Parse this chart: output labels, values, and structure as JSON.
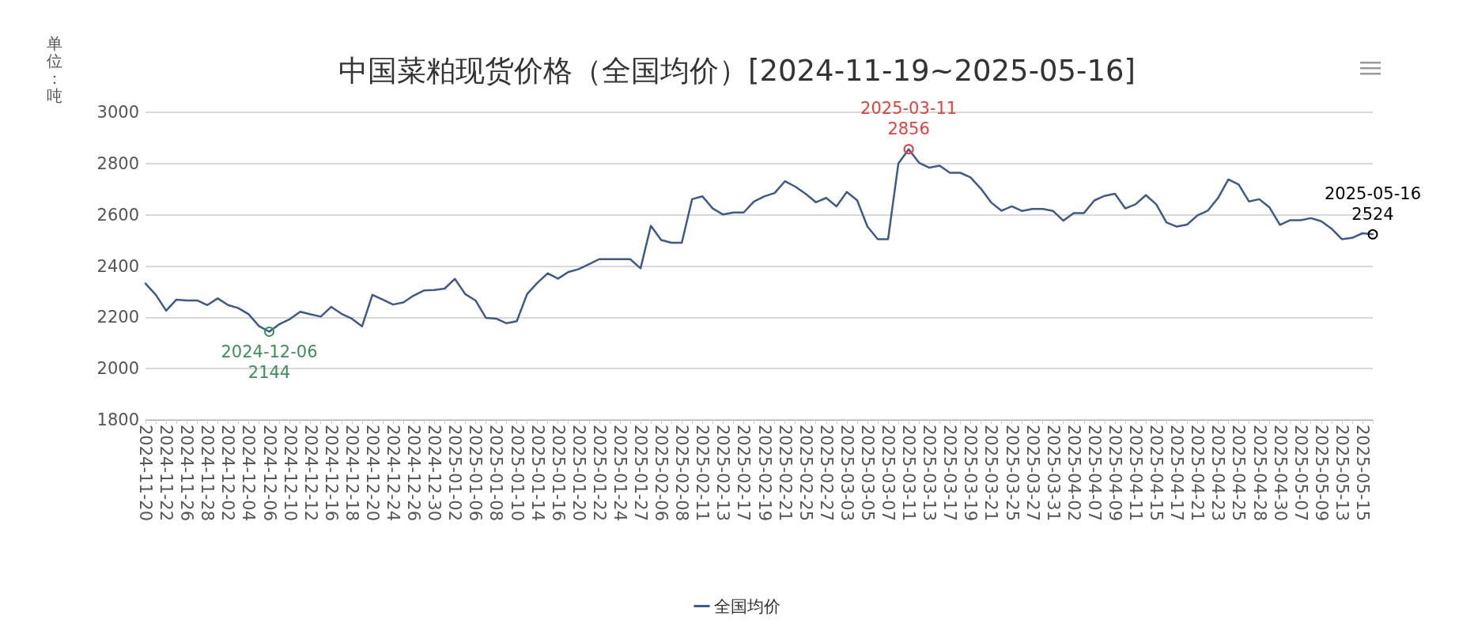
{
  "chart_data": {
    "type": "line",
    "title": "中国菜粕现货价格（全国均价）[2024-11-19~2025-05-16]",
    "ylabel": "单位：吨",
    "categories": [
      "2024-11-20",
      null,
      "2024-11-22",
      null,
      "2024-11-26",
      null,
      "2024-11-28",
      null,
      "2024-12-02",
      null,
      "2024-12-04",
      null,
      "2024-12-06",
      null,
      "2024-12-10",
      null,
      "2024-12-12",
      null,
      "2024-12-16",
      null,
      "2024-12-18",
      null,
      "2024-12-20",
      null,
      "2024-12-24",
      null,
      "2024-12-26",
      null,
      "2024-12-30",
      null,
      "2025-01-02",
      null,
      "2025-01-06",
      null,
      "2025-01-08",
      null,
      "2025-01-10",
      null,
      "2025-01-14",
      null,
      "2025-01-16",
      null,
      "2025-01-20",
      null,
      "2025-01-22",
      null,
      "2025-01-24",
      null,
      "2025-01-27",
      null,
      "2025-02-06",
      null,
      "2025-02-08",
      null,
      "2025-02-11",
      null,
      "2025-02-13",
      null,
      "2025-02-17",
      null,
      "2025-02-19",
      null,
      "2025-02-21",
      null,
      "2025-02-25",
      null,
      "2025-02-27",
      null,
      "2025-03-03",
      null,
      "2025-03-05",
      null,
      "2025-03-07",
      null,
      "2025-03-11",
      null,
      "2025-03-13",
      null,
      "2025-03-17",
      null,
      "2025-03-19",
      null,
      "2025-03-21",
      null,
      "2025-03-25",
      null,
      "2025-03-27",
      null,
      "2025-03-31",
      null,
      "2025-04-02",
      null,
      "2025-04-07",
      null,
      "2025-04-09",
      null,
      "2025-04-11",
      null,
      "2025-04-15",
      null,
      "2025-04-17",
      null,
      "2025-04-21",
      null,
      "2025-04-23",
      null,
      "2025-04-25",
      null,
      "2025-04-28",
      null,
      "2025-04-30",
      null,
      "2025-05-07",
      null,
      "2025-05-09",
      null,
      "2025-05-13",
      null,
      "2025-05-15",
      null
    ],
    "series": [
      {
        "name": "全国均价",
        "color": "#3d5a8a",
        "values": [
          2332,
          2288,
          2226,
          2269,
          2266,
          2266,
          2248,
          2274,
          2248,
          2236,
          2212,
          2166,
          2144,
          2174,
          2193,
          2222,
          2212,
          2203,
          2241,
          2214,
          2195,
          2165,
          2288,
          2269,
          2250,
          2258,
          2285,
          2305,
          2307,
          2312,
          2350,
          2291,
          2266,
          2198,
          2195,
          2177,
          2185,
          2291,
          2335,
          2372,
          2351,
          2377,
          2388,
          2407,
          2427,
          2427,
          2427,
          2427,
          2391,
          2557,
          2502,
          2491,
          2491,
          2661,
          2672,
          2625,
          2601,
          2609,
          2609,
          2652,
          2672,
          2685,
          2731,
          2710,
          2682,
          2649,
          2666,
          2633,
          2689,
          2657,
          2554,
          2505,
          2505,
          2800,
          2856,
          2803,
          2784,
          2792,
          2764,
          2764,
          2746,
          2702,
          2648,
          2616,
          2633,
          2615,
          2623,
          2623,
          2615,
          2577,
          2607,
          2607,
          2656,
          2674,
          2682,
          2625,
          2641,
          2677,
          2641,
          2570,
          2554,
          2562,
          2598,
          2616,
          2666,
          2738,
          2718,
          2652,
          2661,
          2628,
          2561,
          2579,
          2579,
          2587,
          2575,
          2546,
          2505,
          2510,
          2528,
          2524
        ]
      }
    ],
    "annotations": [
      {
        "text": "2024-12-06\n2144",
        "x": "2024-12-06",
        "y": 2144
      },
      {
        "text": "2025-03-11\n2856",
        "x": "2025-03-11",
        "y": 2856
      },
      {
        "text": "2025-05-16\n2524",
        "y": 2524
      }
    ],
    "ylim": [
      1800,
      3000
    ],
    "yticks": [
      1800,
      2000,
      2200,
      2400,
      2600,
      2800,
      3000
    ],
    "grid": "y",
    "legend": "bottom",
    "marker": "none",
    "line_style": "solid"
  }
}
